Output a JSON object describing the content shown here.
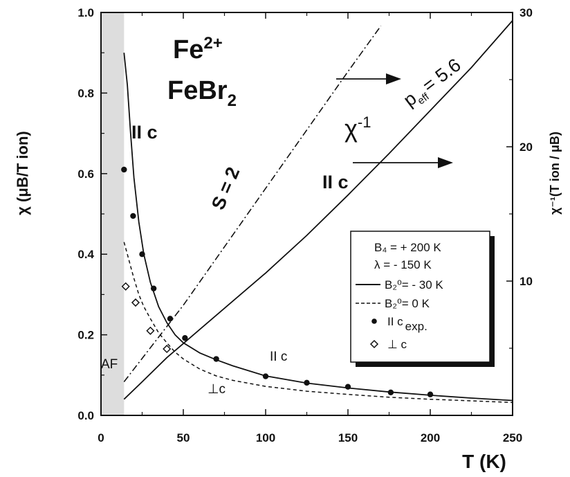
{
  "chart_data": {
    "type": "line",
    "title": "",
    "xlabel": "T (K)",
    "ylabel_left": "χ (μB/T ion)",
    "ylabel_right": "χ⁻¹(T ion / μB)",
    "xlim": [
      0,
      250
    ],
    "ylim_left": [
      0.0,
      1.0
    ],
    "ylim_right": [
      0,
      30
    ],
    "x_ticks": [
      "0",
      "50",
      "100",
      "150",
      "200",
      "250"
    ],
    "y_ticks_left": [
      "0.0",
      "0.2",
      "0.4",
      "0.6",
      "0.8",
      "1.0"
    ],
    "y_ticks_right": [
      "10",
      "20",
      "30"
    ],
    "grid": false,
    "af_region": {
      "label": "AF",
      "x_range": [
        0,
        14
      ],
      "color": "#dddddd"
    },
    "annotations": {
      "compound_ion": "Fe",
      "compound_ion_charge": "2+",
      "compound_formula": "FeBr",
      "compound_formula_sub": "2",
      "par_c_top": "II c",
      "par_c_mid": "II c",
      "par_c_inv": "II c",
      "perp_c": "⊥c",
      "s2": "S = 2",
      "chi_inv": "χ",
      "chi_inv_sup": "-1",
      "peff": "p",
      "peff_sub": "eff",
      "peff_val": "= 5.6",
      "af": "AF"
    },
    "legend": {
      "position": "lower-right",
      "lines": [
        {
          "text": "B₄ = + 200 K"
        },
        {
          "text": "λ = - 150 K"
        },
        {
          "text": "B₂⁰= - 30 K",
          "style": "solid"
        },
        {
          "text": "B₂⁰= 0 K",
          "style": "dashed"
        },
        {
          "text": "II c",
          "sub": "exp.",
          "marker": "filled-circle"
        },
        {
          "text": "⊥ c",
          "marker": "open-diamond"
        }
      ]
    },
    "series": [
      {
        "name": "B₂⁰= - 30 K",
        "axis": "left",
        "style": "solid",
        "x": [
          14,
          16,
          18,
          20,
          23,
          26,
          30,
          35,
          40,
          45,
          50,
          60,
          70,
          80,
          100,
          125,
          150,
          175,
          200,
          225,
          250
        ],
        "y": [
          0.9,
          0.82,
          0.7,
          0.59,
          0.48,
          0.4,
          0.33,
          0.27,
          0.23,
          0.2,
          0.18,
          0.155,
          0.138,
          0.123,
          0.098,
          0.08,
          0.068,
          0.058,
          0.05,
          0.043,
          0.037
        ]
      },
      {
        "name": "B₂⁰= 0 K",
        "axis": "left",
        "style": "dashed",
        "x": [
          14,
          16,
          18,
          20,
          23,
          26,
          30,
          35,
          40,
          45,
          50,
          60,
          70,
          80,
          100,
          125,
          150,
          175,
          200,
          225,
          250
        ],
        "y": [
          0.43,
          0.4,
          0.37,
          0.34,
          0.3,
          0.27,
          0.24,
          0.205,
          0.18,
          0.157,
          0.14,
          0.115,
          0.098,
          0.087,
          0.072,
          0.06,
          0.052,
          0.045,
          0.04,
          0.036,
          0.032
        ]
      },
      {
        "name": "II c exp.",
        "axis": "left",
        "style": "markers",
        "marker": "filled-circle",
        "x": [
          14,
          19.5,
          25,
          32,
          42,
          51,
          70,
          100,
          125,
          150,
          176,
          200
        ],
        "y": [
          0.61,
          0.495,
          0.4,
          0.315,
          0.24,
          0.192,
          0.14,
          0.097,
          0.081,
          0.071,
          0.057,
          0.052
        ]
      },
      {
        "name": "⊥ c",
        "axis": "left",
        "style": "markers",
        "marker": "open-diamond",
        "x": [
          15,
          21,
          30,
          40
        ],
        "y": [
          0.32,
          0.28,
          0.21,
          0.165
        ]
      },
      {
        "name": "χ⁻¹ II c",
        "axis": "right",
        "style": "solid",
        "x": [
          14,
          25,
          40,
          60,
          80,
          100,
          125,
          150,
          175,
          200,
          225,
          250
        ],
        "y": [
          1.2,
          2.5,
          4.3,
          6.4,
          8.5,
          10.6,
          13.4,
          16.4,
          19.5,
          22.7,
          25.9,
          29.4
        ]
      },
      {
        "name": "S = 2",
        "axis": "right",
        "style": "dashdot",
        "x": [
          14,
          50,
          100,
          150,
          170
        ],
        "y": [
          2.5,
          8.2,
          16.9,
          25.6,
          29.0
        ]
      }
    ]
  },
  "arrows": {
    "count": 2,
    "direction": "right"
  }
}
